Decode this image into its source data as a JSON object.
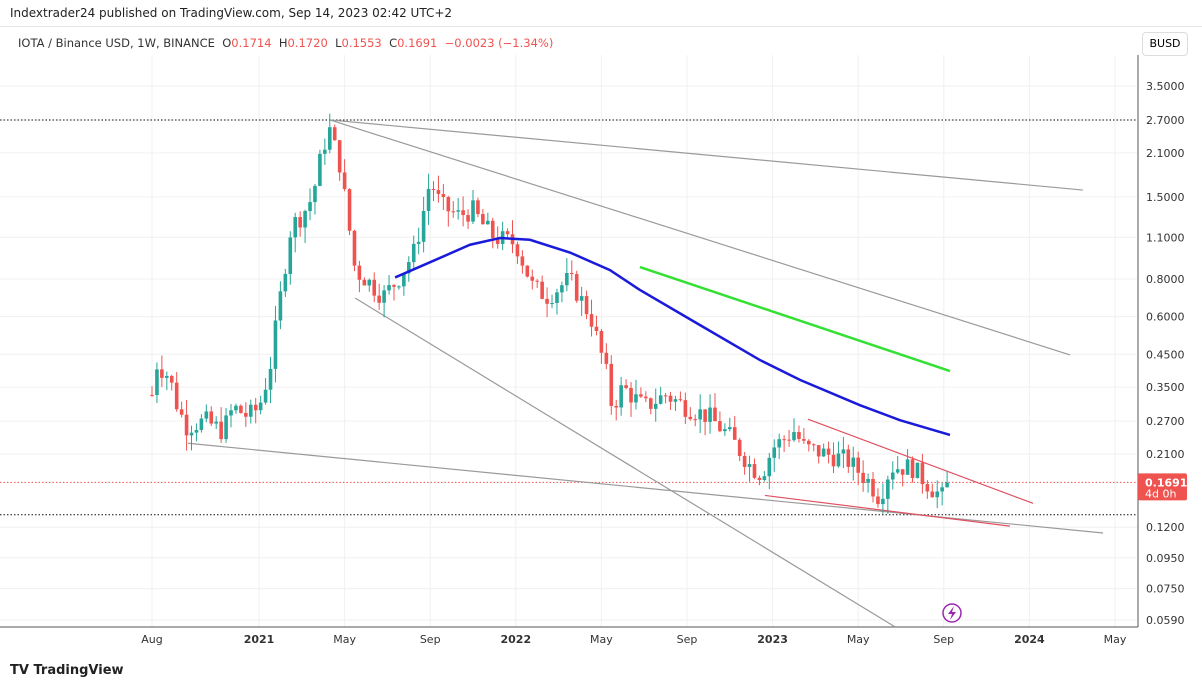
{
  "header": {
    "published": "Indextrader24 published on TradingView.com, Sep 14, 2023 02:42 UTC+2"
  },
  "legend": {
    "symbol": "IOTA / Binance USD, 1W, BINANCE",
    "o_label": "O",
    "o": "0.1714",
    "h_label": "H",
    "h": "0.1720",
    "l_label": "L",
    "l": "0.1553",
    "c_label": "C",
    "c": "0.1691",
    "change": "−0.0023 (−1.34%)"
  },
  "currency_button": "BUSD",
  "footer": {
    "logo": "TradingView"
  },
  "chart_data": {
    "type": "candlestick",
    "scale": "log",
    "yticks": [
      "3.5000",
      "2.7000",
      "2.1000",
      "1.5000",
      "1.1000",
      "0.8000",
      "0.6000",
      "0.4500",
      "0.3500",
      "0.2700",
      "0.2100",
      "0.1200",
      "0.0950",
      "0.0750",
      "0.0590"
    ],
    "xticks": [
      {
        "label": "Aug",
        "m": 0,
        "bold": false
      },
      {
        "label": "2021",
        "m": 5,
        "bold": true
      },
      {
        "label": "May",
        "m": 9,
        "bold": false
      },
      {
        "label": "Sep",
        "m": 13,
        "bold": false
      },
      {
        "label": "2022",
        "m": 17,
        "bold": true
      },
      {
        "label": "May",
        "m": 21,
        "bold": false
      },
      {
        "label": "Sep",
        "m": 25,
        "bold": false
      },
      {
        "label": "2023",
        "m": 29,
        "bold": true
      },
      {
        "label": "May",
        "m": 33,
        "bold": false
      },
      {
        "label": "Sep",
        "m": 37,
        "bold": false
      },
      {
        "label": "2024",
        "m": 41,
        "bold": true
      },
      {
        "label": "May",
        "m": 45,
        "bold": false
      }
    ],
    "last_price": {
      "value": "0.1691",
      "countdown": "4d 0h"
    },
    "colors": {
      "up": "#26a69a",
      "down": "#ef5350",
      "ma": "#1a1adb",
      "green_line": "#33e033",
      "red_line": "#e05060",
      "gray_line": "#9a9a9a"
    },
    "price_path_months_since_aug2020": [
      [
        0,
        0.33
      ],
      [
        0.2,
        0.42
      ],
      [
        0.8,
        0.38
      ],
      [
        1.2,
        0.3
      ],
      [
        1.6,
        0.26
      ],
      [
        2.5,
        0.27
      ],
      [
        3.3,
        0.25
      ],
      [
        3.8,
        0.3
      ],
      [
        4.5,
        0.28
      ],
      [
        5,
        0.3
      ],
      [
        5.5,
        0.4
      ],
      [
        6,
        0.7
      ],
      [
        6.5,
        1.2
      ],
      [
        7,
        1.3
      ],
      [
        7.5,
        1.5
      ],
      [
        8,
        2.2
      ],
      [
        8.3,
        2.5
      ],
      [
        8.8,
        1.9
      ],
      [
        9.2,
        1.2
      ],
      [
        9.5,
        0.85
      ],
      [
        10,
        0.8
      ],
      [
        10.8,
        0.7
      ],
      [
        11.5,
        0.8
      ],
      [
        12.3,
        1.0
      ],
      [
        13,
        1.7
      ],
      [
        13.5,
        1.4
      ],
      [
        14.3,
        1.3
      ],
      [
        15,
        1.35
      ],
      [
        15.5,
        1.2
      ],
      [
        16,
        1.1
      ],
      [
        17,
        1.05
      ],
      [
        17.8,
        0.75
      ],
      [
        18.5,
        0.7
      ],
      [
        19.5,
        0.8
      ],
      [
        20.5,
        0.6
      ],
      [
        21.2,
        0.4
      ],
      [
        21.5,
        0.3
      ],
      [
        22,
        0.35
      ],
      [
        23,
        0.3
      ],
      [
        24,
        0.33
      ],
      [
        25,
        0.3
      ],
      [
        26,
        0.28
      ],
      [
        27,
        0.24
      ],
      [
        28,
        0.19
      ],
      [
        28.5,
        0.18
      ],
      [
        29,
        0.22
      ],
      [
        30,
        0.25
      ],
      [
        30.5,
        0.22
      ],
      [
        31.5,
        0.21
      ],
      [
        32.5,
        0.2
      ],
      [
        33.5,
        0.17
      ],
      [
        34,
        0.15
      ],
      [
        34.5,
        0.19
      ],
      [
        35.5,
        0.19
      ],
      [
        36.5,
        0.16
      ],
      [
        37,
        0.15
      ],
      [
        37.2,
        0.169
      ]
    ],
    "moving_average": [
      [
        11.36,
        0.81
      ],
      [
        13,
        0.91
      ],
      [
        14.86,
        1.04
      ],
      [
        16.26,
        1.095
      ],
      [
        17.66,
        1.08
      ],
      [
        19.53,
        0.98
      ],
      [
        21.4,
        0.857
      ],
      [
        22.8,
        0.736
      ],
      [
        25.6,
        0.563
      ],
      [
        28.4,
        0.431
      ],
      [
        30.28,
        0.37
      ],
      [
        33.08,
        0.305
      ],
      [
        34.95,
        0.272
      ],
      [
        37.29,
        0.243
      ]
    ],
    "trendlines": [
      {
        "color": "gray",
        "from": [
          8.32,
          2.7
        ],
        "to": [
          43.5,
          1.58
        ]
      },
      {
        "color": "gray",
        "from": [
          8.32,
          2.7
        ],
        "to": [
          42.9,
          0.448
        ]
      },
      {
        "color": "gray",
        "from": [
          9.49,
          0.692
        ],
        "to": [
          34.72,
          0.056
        ]
      },
      {
        "color": "gray",
        "from": [
          1.68,
          0.228
        ],
        "to": [
          44.44,
          0.1148
        ]
      },
      {
        "color": "green",
        "from": [
          22.8,
          0.877
        ],
        "to": [
          37.29,
          0.396
        ]
      },
      {
        "color": "red",
        "from": [
          30.65,
          0.274
        ],
        "to": [
          41.17,
          0.144
        ]
      },
      {
        "color": "red",
        "from": [
          28.64,
          0.153
        ],
        "to": [
          40.09,
          0.121
        ]
      }
    ],
    "horizontal_levels": [
      {
        "price": 2.7,
        "style": "black-dotted"
      },
      {
        "price": 0.132,
        "style": "black-dotted"
      },
      {
        "price": 0.1691,
        "style": "red-dotted"
      }
    ]
  }
}
